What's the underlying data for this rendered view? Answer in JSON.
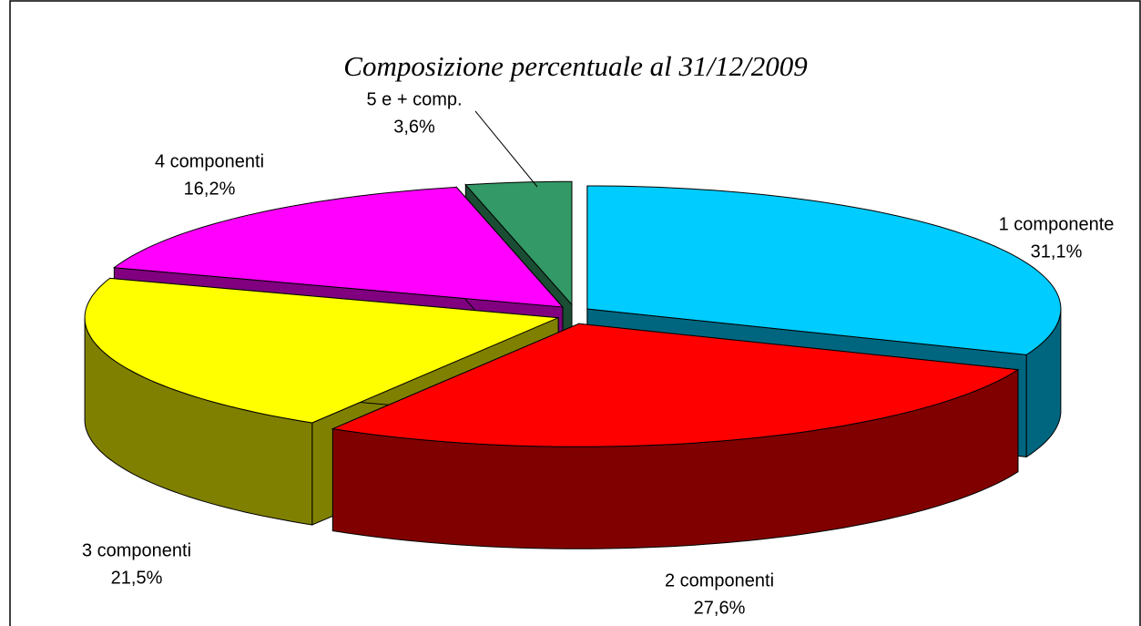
{
  "chart_data": {
    "type": "pie",
    "title": "Composizione percentuale al 31/12/2009",
    "categories": [
      "1 componente",
      "2 componenti",
      "3 componenti",
      "4 componenti",
      "5 e + comp."
    ],
    "values": [
      31.1,
      27.6,
      21.5,
      16.2,
      3.6
    ],
    "value_labels": [
      "31,1%",
      "27,6%",
      "21,5%",
      "16,2%",
      "3,6%"
    ],
    "colors": [
      "#00ccff",
      "#ff0000",
      "#ffff00",
      "#ff00ff",
      "#339966"
    ]
  }
}
